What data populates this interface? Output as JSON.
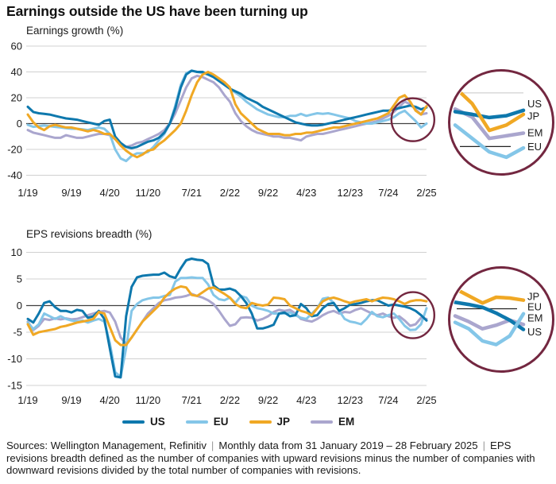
{
  "title": "Earnings outside the US have been turning up",
  "colors": {
    "us": "#0e78ad",
    "eu": "#84c6e8",
    "jp": "#f0a824",
    "em": "#aaa6ce",
    "highlight_ring": "#732740",
    "grid": "#d0d0d0",
    "zero_line": "#404040",
    "text": "#1a1a1a",
    "separator": "#9b9b9b"
  },
  "legend": {
    "items": [
      {
        "id": "us",
        "label": "US"
      },
      {
        "id": "eu",
        "label": "EU"
      },
      {
        "id": "jp",
        "label": "JP"
      },
      {
        "id": "em",
        "label": "EM"
      }
    ]
  },
  "chart_data": [
    {
      "type": "line",
      "title": "Earnings growth (%)",
      "ylabel": "Earnings growth (%)",
      "frequency": "monthly",
      "x_start": "1/2019",
      "x_end": "2/2025",
      "ylim": [
        -40,
        60
      ],
      "y_ticks": [
        60,
        40,
        20,
        0,
        -20,
        -40
      ],
      "x_ticks": [
        {
          "label": "1/19",
          "month": 0
        },
        {
          "label": "9/19",
          "month": 8
        },
        {
          "label": "4/20",
          "month": 15
        },
        {
          "label": "11/20",
          "month": 22
        },
        {
          "label": "7/21",
          "month": 30
        },
        {
          "label": "2/22",
          "month": 37
        },
        {
          "label": "9/22",
          "month": 44
        },
        {
          "label": "4/23",
          "month": 51
        },
        {
          "label": "12/23",
          "month": 59
        },
        {
          "label": "7/24",
          "month": 66
        },
        {
          "label": "2/25",
          "month": 73
        }
      ],
      "series": [
        {
          "name": "EM",
          "color_id": "em",
          "values": [
            -5,
            -7,
            -8,
            -9,
            -10,
            -11,
            -11,
            -9,
            -10,
            -11,
            -11,
            -10,
            -9,
            -8,
            -8,
            -9,
            -12,
            -16,
            -18,
            -17,
            -15,
            -14,
            -12,
            -10,
            -8,
            -5,
            0,
            8,
            18,
            28,
            35,
            37,
            36,
            34,
            32,
            28,
            22,
            17,
            8,
            2,
            -2,
            -5,
            -7,
            -8,
            -9,
            -10,
            -10,
            -11,
            -11,
            -12,
            -13,
            -10,
            -9,
            -8,
            -8,
            -7,
            -6,
            -5,
            -4,
            -3,
            -2,
            -1,
            0,
            1,
            2,
            4,
            6,
            9,
            13,
            17,
            15,
            11,
            7,
            8
          ]
        },
        {
          "name": "EU",
          "color_id": "eu",
          "values": [
            -1,
            -2.5,
            -2,
            -1.5,
            -2,
            -2.5,
            -3,
            -3.5,
            -4,
            -4,
            -4.5,
            -5,
            -4,
            -3,
            -4,
            -8,
            -20,
            -27,
            -29,
            -25,
            -23,
            -23,
            -22,
            -18,
            -13,
            -8,
            0,
            14,
            30,
            39,
            41,
            40,
            39,
            38,
            37,
            34,
            31,
            27,
            24,
            21,
            17,
            14,
            11,
            9,
            7,
            6,
            5,
            5,
            6,
            6,
            7.5,
            6,
            7,
            8,
            7.5,
            8,
            7,
            6,
            5,
            4,
            2,
            1,
            0,
            0,
            1,
            2,
            3,
            5,
            8,
            10,
            6,
            2,
            -3,
            0
          ]
        },
        {
          "name": "US",
          "color_id": "us",
          "values": [
            13,
            9,
            8,
            7.5,
            7,
            6,
            5,
            4,
            3.5,
            3,
            2,
            1,
            0,
            -1,
            2,
            3,
            -10,
            -15,
            -18,
            -19,
            -18,
            -16,
            -14,
            -13,
            -11,
            -7,
            0,
            12,
            28,
            38,
            41,
            40,
            40,
            38,
            36,
            33,
            30,
            27,
            25,
            23,
            20,
            18,
            16,
            13,
            11,
            9,
            7,
            5,
            3,
            1,
            0,
            -1,
            -1.5,
            -1.5,
            -1,
            0,
            1,
            2,
            3,
            4,
            5,
            6,
            7,
            8,
            9,
            10,
            10,
            11,
            12,
            13,
            14,
            13,
            11,
            12.5
          ]
        },
        {
          "name": "JP",
          "color_id": "jp",
          "values": [
            7,
            1,
            -3,
            -5,
            -2,
            -1,
            -2,
            -3,
            -3,
            -4,
            -5,
            -6,
            -5,
            -6,
            -8,
            -8,
            -12,
            -17,
            -21,
            -24,
            -26,
            -24,
            -21,
            -20,
            -16,
            -13,
            -9,
            -5,
            0,
            10,
            22,
            32,
            38,
            40,
            38,
            35,
            32,
            28,
            15,
            8,
            4,
            0,
            -4,
            -6,
            -8,
            -8,
            -8,
            -9,
            -9,
            -8,
            -8,
            -7,
            -7,
            -6,
            -5,
            -4,
            -3,
            -3,
            -2,
            -1,
            0,
            1,
            2,
            3,
            4,
            6,
            8,
            14,
            20,
            22,
            17,
            10,
            7,
            13.5
          ]
        }
      ],
      "highlight_circle": {
        "month": 70.5,
        "value": 3,
        "rx": 27,
        "ry": 27
      }
    },
    {
      "type": "line",
      "title": "EPS revisions breadth (%)",
      "ylabel": "EPS revisions breadth (%)",
      "frequency": "monthly",
      "x_start": "1/2019",
      "x_end": "2/2025",
      "ylim": [
        -15,
        10
      ],
      "y_ticks": [
        10,
        5,
        0,
        -5,
        -10,
        -15
      ],
      "x_ticks": [
        {
          "label": "1/19",
          "month": 0
        },
        {
          "label": "9/19",
          "month": 8
        },
        {
          "label": "4/20",
          "month": 15
        },
        {
          "label": "11/20",
          "month": 22
        },
        {
          "label": "7/21",
          "month": 30
        },
        {
          "label": "2/22",
          "month": 37
        },
        {
          "label": "9/22",
          "month": 44
        },
        {
          "label": "4/23",
          "month": 51
        },
        {
          "label": "12/23",
          "month": 59
        },
        {
          "label": "7/24",
          "month": 66
        },
        {
          "label": "2/25",
          "month": 73
        }
      ],
      "series": [
        {
          "name": "EM",
          "color_id": "em",
          "values": [
            -3,
            -4.6,
            -3.8,
            -2.5,
            -2.7,
            -2.4,
            -2.6,
            -2.4,
            -2.6,
            -2.5,
            -2.2,
            -1.8,
            -1.5,
            -1.2,
            -1,
            -1.3,
            -3,
            -6,
            -7.2,
            -6,
            -4.5,
            -3,
            -1.5,
            -0.5,
            0.5,
            1,
            1.2,
            1.5,
            1.6,
            1.8,
            2.2,
            1.8,
            1.5,
            1,
            0.3,
            -1,
            -2.5,
            -3.8,
            -3.5,
            -2.3,
            -2.2,
            -2.3,
            -2.8,
            -2.5,
            -2,
            -1.2,
            -0.8,
            -1,
            -0.8,
            -1.5,
            -2.5,
            -2.8,
            -3,
            -2.5,
            -1.8,
            -1.3,
            -1,
            -1.5,
            -1.2,
            -1.3,
            -0.8,
            -0.5,
            -1,
            -1.5,
            -1.8,
            -1.5,
            -2,
            -2.3,
            -2,
            -2.8,
            -3.8,
            -3.5,
            -2.3,
            -2.5
          ]
        },
        {
          "name": "EU",
          "color_id": "eu",
          "values": [
            -3.2,
            -4.4,
            -3.5,
            -1.5,
            -2,
            -2.5,
            -2,
            -2.5,
            -2.8,
            -3,
            -2.8,
            -3.2,
            -2.8,
            -2.5,
            -3,
            -7,
            -12.5,
            -13.4,
            -8,
            -1,
            0.3,
            1,
            1.3,
            1.5,
            1.5,
            1.8,
            2,
            4.5,
            5.2,
            5.2,
            5.3,
            5.2,
            5.2,
            4,
            2,
            1.2,
            1,
            1.5,
            0.5,
            1.8,
            1.5,
            0,
            -0.5,
            -0.7,
            -1,
            -1.5,
            -1.5,
            -1.5,
            -1.3,
            -1.8,
            -2.3,
            -2.5,
            -1.5,
            -0.5,
            1.3,
            1.5,
            0.5,
            -1,
            -2.5,
            -3,
            -3.2,
            -3.5,
            -2.5,
            -1.2,
            -2,
            -2.2,
            -1.8,
            -1.5,
            -2.5,
            -3.8,
            -4.6,
            -4.5,
            -3.5,
            -0.5
          ]
        },
        {
          "name": "US",
          "color_id": "us",
          "values": [
            -2.5,
            -3.2,
            -1.5,
            0.5,
            0.8,
            -0.3,
            -1,
            -1,
            -1.3,
            -0.8,
            -1,
            -2.3,
            -2,
            -1,
            -2.5,
            -8,
            -13.3,
            -13.5,
            -2,
            3.5,
            5.3,
            5.6,
            5.7,
            5.8,
            5.8,
            6.2,
            5.5,
            5.2,
            7,
            8.5,
            8.8,
            8.6,
            8.5,
            7.8,
            3.8,
            3,
            3,
            3.2,
            2.8,
            1.8,
            0.5,
            -1.5,
            -4.3,
            -4.3,
            -4,
            -3.6,
            -1.5,
            -1.3,
            -2,
            -1.8,
            0.3,
            -0.5,
            -2,
            -1.8,
            -0.5,
            0.3,
            0.5,
            -1,
            -0.5,
            0.2,
            0.3,
            0.5,
            0.8,
            1,
            1,
            0.5,
            0,
            0.2,
            0,
            -0.2,
            -0.5,
            -1,
            -1.8,
            -2.8
          ]
        },
        {
          "name": "JP",
          "color_id": "jp",
          "values": [
            -3.5,
            -5.5,
            -5,
            -4.8,
            -4.6,
            -4.4,
            -4,
            -3.8,
            -3.5,
            -3.2,
            -3,
            -2.8,
            -2.5,
            -1.2,
            -1.5,
            -4,
            -6.5,
            -7.4,
            -7.4,
            -6,
            -4.5,
            -3,
            -2,
            -1,
            0,
            1.5,
            2.5,
            3.2,
            3.6,
            3.4,
            2,
            1.8,
            2.5,
            3.2,
            3.4,
            2.8,
            2.2,
            1.5,
            0.3,
            -0.3,
            -0.5,
            0.5,
            0.2,
            0,
            0.2,
            1.5,
            1.4,
            1.2,
            0,
            -0.5,
            -1,
            -1.3,
            -1.8,
            -0.5,
            0.8,
            1.3,
            1.5,
            1.2,
            0.8,
            0.5,
            0.8,
            1,
            1.2,
            0.8,
            1.2,
            1.5,
            1.4,
            1.2,
            0.8,
            0.3,
            0.8,
            1,
            1,
            0.8
          ]
        }
      ],
      "highlight_circle": {
        "month": 70.5,
        "value": -1.8,
        "rx": 27,
        "ry": 29
      }
    }
  ],
  "insets": [
    {
      "for_chart": "Earnings growth (%)",
      "ylim": [
        -7.3,
        25.3
      ],
      "gridline_value": 20,
      "zero_value": 0,
      "series": [
        {
          "color_id": "eu",
          "points": [
            8,
            3,
            -2,
            -4,
            -0.5
          ]
        },
        {
          "color_id": "em",
          "points": [
            14,
            11,
            3,
            4,
            5
          ]
        },
        {
          "color_id": "us",
          "points": [
            13,
            12,
            10.8,
            11.5,
            13.5
          ]
        },
        {
          "color_id": "jp",
          "points": [
            22,
            16,
            6,
            8,
            12
          ]
        }
      ],
      "labels": [
        {
          "text": "US",
          "value": 16
        },
        {
          "text": "JP",
          "value": 11.4
        },
        {
          "text": "EM",
          "value": 5.2
        },
        {
          "text": "EU",
          "value": -0.1
        }
      ]
    },
    {
      "for_chart": "EPS revisions breadth (%)",
      "ylim": [
        -7.6,
        4.6
      ],
      "gridline_value": null,
      "zero_value": 0,
      "series": [
        {
          "color_id": "em",
          "points": [
            -1.0,
            -1.8,
            -2.8,
            -2.3,
            -1.6,
            -2.2
          ]
        },
        {
          "color_id": "us",
          "points": [
            0.9,
            0.6,
            0.2,
            -0.6,
            -1.6,
            -2.9
          ]
        },
        {
          "color_id": "eu",
          "points": [
            -1.9,
            -2.8,
            -4.5,
            -5.0,
            -3.8,
            -0.7
          ]
        },
        {
          "color_id": "jp",
          "points": [
            2.8,
            1.8,
            0.8,
            1.6,
            1.5,
            1.2
          ]
        }
      ],
      "labels": [
        {
          "text": "JP",
          "value": 1.7
        },
        {
          "text": "EU",
          "value": 0.3
        },
        {
          "text": "EM",
          "value": -1.3
        },
        {
          "text": "US",
          "value": -3.2
        }
      ]
    }
  ],
  "footer": {
    "separator": "|",
    "segments": [
      "Sources: Wellington Management, Refinitiv",
      "Monthly data from 31 January 2019 – 28 February 2025",
      "EPS revisions breadth defined as the number of companies with upward revisions minus the number of companies with downward revisions divided by the total number of companies with revisions."
    ]
  }
}
